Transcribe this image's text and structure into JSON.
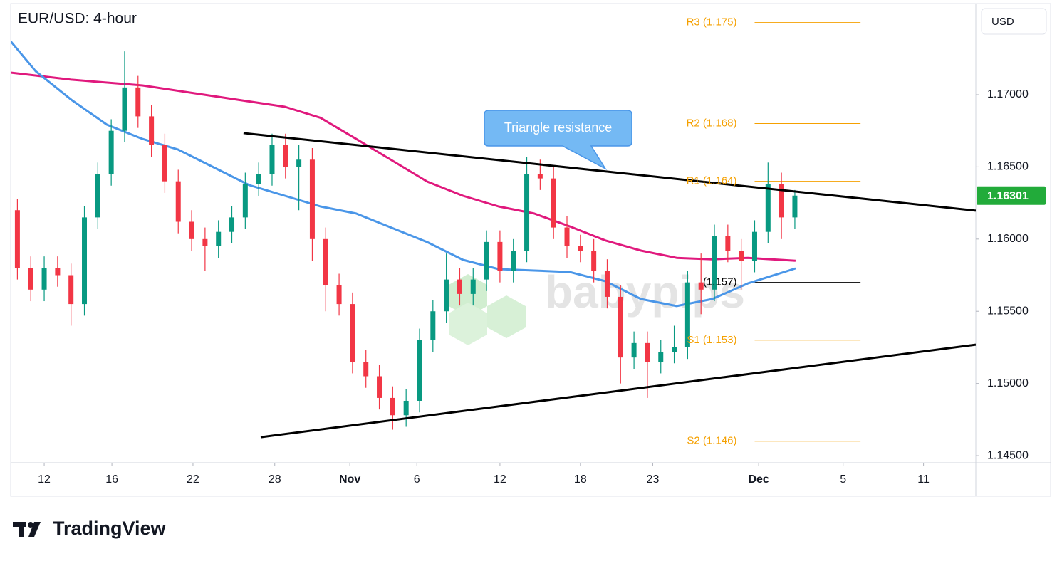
{
  "chart_data": {
    "type": "candlestick",
    "title": "EUR/USD: 4-hour",
    "currency": "USD",
    "watermark": "babypips",
    "x": [
      0.5,
      1.5,
      2.5,
      3.5,
      4.5,
      5.5,
      6.5,
      7.5,
      8.5,
      9.5,
      10.5,
      11.5,
      12.5,
      13.5,
      14.5,
      15.5,
      16.5,
      17.5,
      18.5,
      19.5,
      20.5,
      21.5,
      22.5,
      23.5,
      24.5,
      25.5,
      26.5,
      27.5,
      28.5,
      29.5,
      30.5,
      31.5,
      32.5,
      33.5,
      34.5,
      35.5,
      36.5,
      37.5,
      38.5,
      39.5,
      40.5,
      41.5,
      42.5,
      43.5,
      44.5,
      45.5,
      46.5,
      47.5,
      48.5,
      49.5,
      50.5,
      51.5,
      52.5,
      53.5,
      54.5,
      55.5,
      56.5,
      57.5,
      58.5
    ],
    "open": [
      1.162,
      1.158,
      1.1565,
      1.158,
      1.1575,
      1.1555,
      1.1615,
      1.1645,
      1.1675,
      1.1705,
      1.1685,
      1.1665,
      1.164,
      1.1612,
      1.16,
      1.1595,
      1.1605,
      1.1615,
      1.1638,
      1.1645,
      1.1665,
      1.165,
      1.1655,
      1.16,
      1.1568,
      1.1555,
      1.1515,
      1.1505,
      1.149,
      1.1478,
      1.1488,
      1.153,
      1.155,
      1.1572,
      1.1562,
      1.1572,
      1.1598,
      1.1578,
      1.1592,
      1.1645,
      1.1642,
      1.1608,
      1.1595,
      1.1592,
      1.1578,
      1.156,
      1.1518,
      1.1528,
      1.1515,
      1.1522,
      1.1525,
      1.157,
      1.1565,
      1.1602,
      1.1592,
      1.1585,
      1.1605,
      1.1638,
      1.1615
    ],
    "high": [
      1.1628,
      1.1588,
      1.1588,
      1.1588,
      1.1583,
      1.1623,
      1.1653,
      1.1683,
      1.173,
      1.1713,
      1.1693,
      1.1673,
      1.1648,
      1.162,
      1.1608,
      1.1613,
      1.1623,
      1.1646,
      1.1653,
      1.1673,
      1.1673,
      1.1665,
      1.1663,
      1.1608,
      1.1576,
      1.1563,
      1.1523,
      1.1513,
      1.1498,
      1.1496,
      1.1538,
      1.1558,
      1.159,
      1.158,
      1.158,
      1.1606,
      1.1606,
      1.16,
      1.1657,
      1.1655,
      1.165,
      1.1616,
      1.1603,
      1.16,
      1.1586,
      1.1568,
      1.1536,
      1.1536,
      1.153,
      1.154,
      1.1578,
      1.159,
      1.161,
      1.161,
      1.16,
      1.1613,
      1.1653,
      1.1646,
      1.1634
    ],
    "low": [
      1.1572,
      1.1557,
      1.1557,
      1.1567,
      1.154,
      1.1547,
      1.1607,
      1.1637,
      1.1667,
      1.1677,
      1.1657,
      1.1632,
      1.1604,
      1.1592,
      1.1578,
      1.1587,
      1.1597,
      1.1607,
      1.163,
      1.1637,
      1.1642,
      1.162,
      1.1585,
      1.155,
      1.1547,
      1.1507,
      1.1497,
      1.1482,
      1.1468,
      1.147,
      1.148,
      1.1522,
      1.1542,
      1.1554,
      1.1554,
      1.1564,
      1.157,
      1.157,
      1.1584,
      1.1634,
      1.16,
      1.1587,
      1.1584,
      1.157,
      1.1552,
      1.15,
      1.151,
      1.149,
      1.1507,
      1.1514,
      1.1517,
      1.1548,
      1.1557,
      1.1584,
      1.1565,
      1.1577,
      1.1597,
      1.16,
      1.1607
    ],
    "close": [
      1.158,
      1.1565,
      1.158,
      1.1575,
      1.1555,
      1.1615,
      1.1645,
      1.1675,
      1.1705,
      1.1685,
      1.1665,
      1.164,
      1.1612,
      1.16,
      1.1595,
      1.1605,
      1.1615,
      1.1638,
      1.1645,
      1.1665,
      1.165,
      1.1655,
      1.16,
      1.1568,
      1.1555,
      1.1515,
      1.1505,
      1.149,
      1.1478,
      1.1488,
      1.153,
      1.155,
      1.1572,
      1.1562,
      1.1572,
      1.1598,
      1.1578,
      1.1592,
      1.1645,
      1.1642,
      1.1608,
      1.1595,
      1.1592,
      1.1578,
      1.156,
      1.1518,
      1.1528,
      1.1515,
      1.1522,
      1.1525,
      1.157,
      1.1565,
      1.1602,
      1.1592,
      1.1585,
      1.1605,
      1.1638,
      1.1615,
      1.16301
    ],
    "up_color": "#089981",
    "down_color": "#f23645",
    "moving_averages": [
      {
        "color": "#e0197d",
        "x": [
          0,
          4.52,
          9.83,
          15.14,
          20.46,
          23.11,
          25.77,
          28.43,
          31.08,
          33.74,
          36.4,
          39.05,
          41.71,
          44.37,
          47.02,
          49.68,
          52.34,
          54.99,
          58.55
        ],
        "values": [
          1.17153,
          1.17104,
          1.17064,
          1.1699,
          1.16916,
          1.1684,
          1.16694,
          1.16546,
          1.16398,
          1.163,
          1.16226,
          1.16177,
          1.16088,
          1.1599,
          1.1592,
          1.1587,
          1.1586,
          1.1587,
          1.1585
        ]
      },
      {
        "color": "#4a96e8",
        "x": [
          0,
          1.86,
          4.52,
          7.17,
          9.83,
          12.49,
          15.14,
          17.8,
          20.46,
          23.11,
          25.77,
          28.43,
          31.08,
          33.74,
          36.4,
          39.05,
          41.71,
          44.37,
          47.02,
          49.68,
          52.34,
          54.99,
          58.55
        ],
        "values": [
          1.1737,
          1.17163,
          1.16965,
          1.16793,
          1.16694,
          1.1662,
          1.16497,
          1.16374,
          1.163,
          1.16226,
          1.16177,
          1.16078,
          1.15979,
          1.15856,
          1.15792,
          1.15782,
          1.15772,
          1.15708,
          1.15585,
          1.15536,
          1.15585,
          1.15693,
          1.15797
        ]
      }
    ],
    "trendlines": [
      {
        "color": "#000000",
        "x": [
          17.37,
          72
        ],
        "values": [
          1.16734,
          1.16197
        ]
      },
      {
        "color": "#000000",
        "x": [
          18.65,
          72
        ],
        "values": [
          1.14628,
          1.15269
        ]
      }
    ],
    "annotations": [
      {
        "text": "Triangle resistance",
        "x": 44.37,
        "value": 1.16487
      }
    ],
    "pivot_x": [
      55.5,
      63.4
    ],
    "pivots": [
      {
        "label": "R3 (1.175)",
        "value": 1.175,
        "color": "#f5a000"
      },
      {
        "label": "R2 (1.168)",
        "value": 1.168,
        "color": "#f5a000"
      },
      {
        "label": "R1 (1.164)",
        "value": 1.164,
        "color": "#f5a000"
      },
      {
        "label": "(1.157)",
        "value": 1.157,
        "color": "#000000"
      },
      {
        "label": "S1 (1.153)",
        "value": 1.153,
        "color": "#f5a000"
      },
      {
        "label": "S2 (1.146)",
        "value": 1.146,
        "color": "#f5a000"
      }
    ],
    "last_price": 1.16301,
    "last_price_color": "#22ab3a",
    "xlim": [
      0,
      72
    ],
    "ylim": [
      1.14451,
      1.17631
    ],
    "xticks": [
      {
        "value": 2.5,
        "label": "12"
      },
      {
        "value": 7.55,
        "label": "16"
      },
      {
        "value": 13.6,
        "label": "22"
      },
      {
        "value": 19.7,
        "label": "28"
      },
      {
        "value": 25.3,
        "label": "Nov"
      },
      {
        "value": 30.3,
        "label": "6"
      },
      {
        "value": 36.5,
        "label": "12"
      },
      {
        "value": 42.5,
        "label": "18"
      },
      {
        "value": 47.9,
        "label": "23"
      },
      {
        "value": 55.8,
        "label": "Dec"
      },
      {
        "value": 62.1,
        "label": "5"
      },
      {
        "value": 68.1,
        "label": "11"
      }
    ],
    "yticks": [
      {
        "value": 1.145,
        "label": "1.14500"
      },
      {
        "value": 1.15,
        "label": "1.15000"
      },
      {
        "value": 1.155,
        "label": "1.15500"
      },
      {
        "value": 1.16,
        "label": "1.16000"
      },
      {
        "value": 1.165,
        "label": "1.16500"
      },
      {
        "value": 1.17,
        "label": "1.17000"
      }
    ]
  },
  "branding": "TradingView"
}
